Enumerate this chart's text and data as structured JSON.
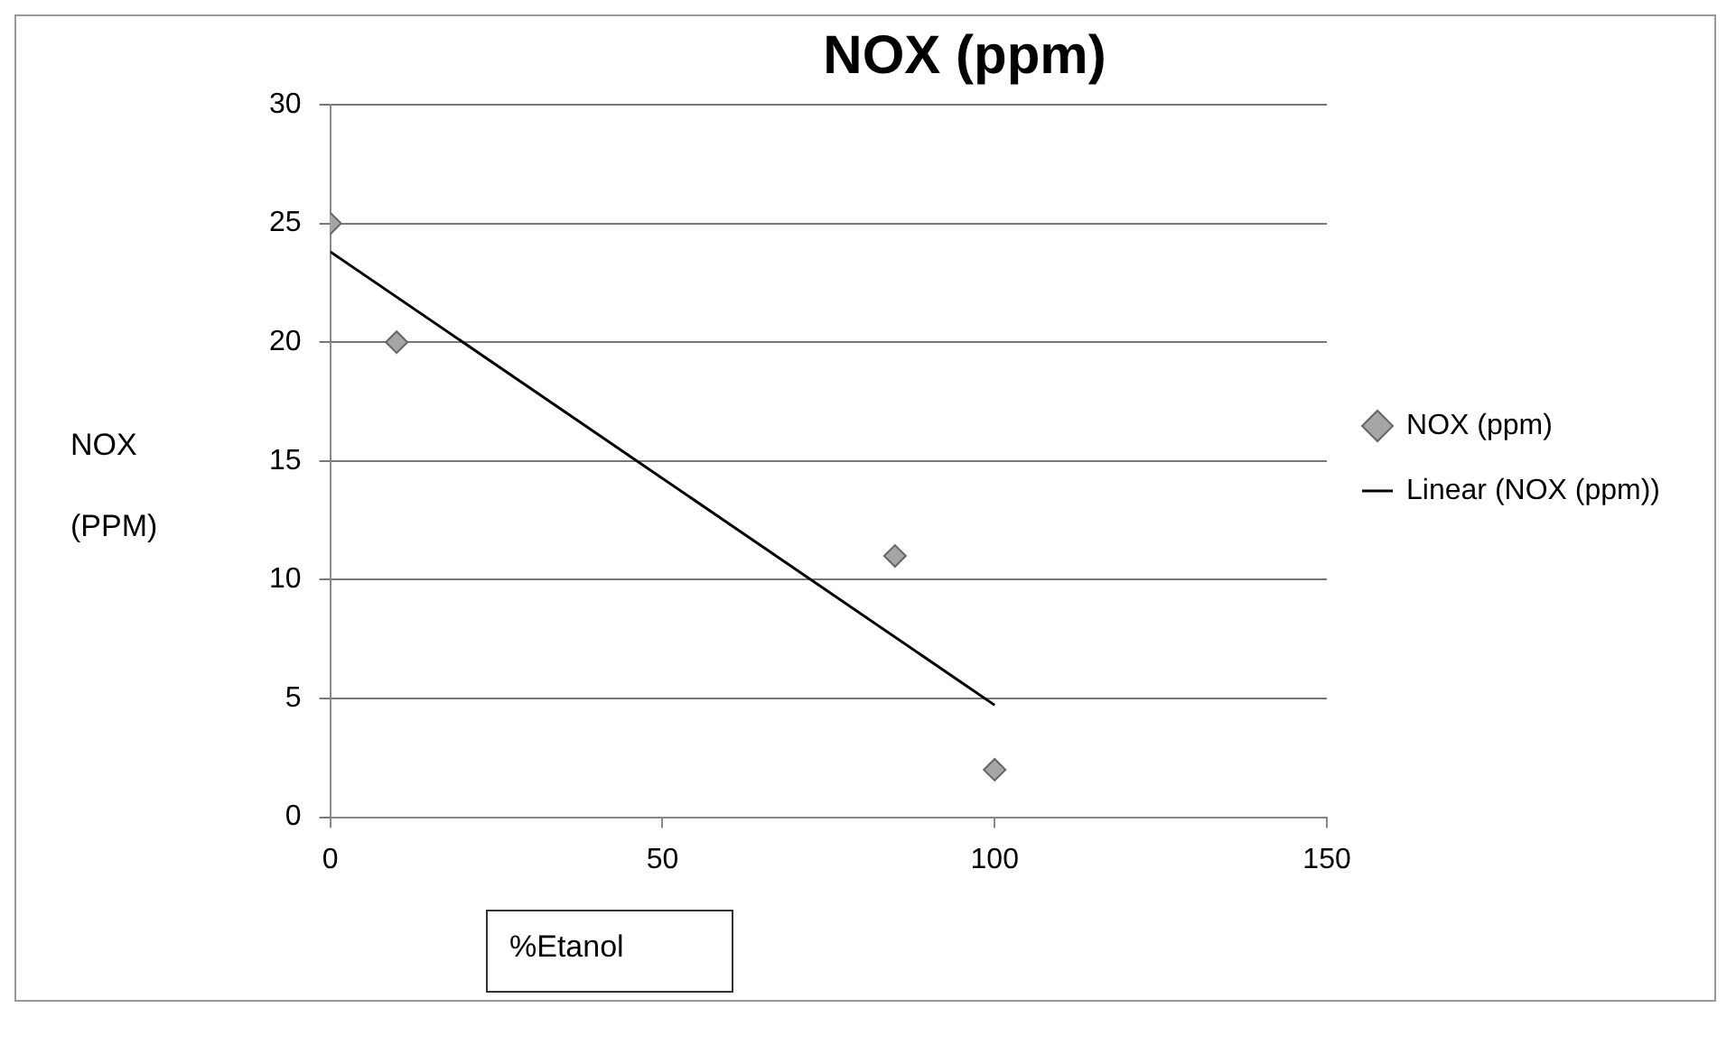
{
  "chart_data": {
    "type": "scatter",
    "title": "NOX (ppm)",
    "xlabel": "%Etanol",
    "ylabel": "NOX (PPM)",
    "xlim": [
      0,
      150
    ],
    "xticks": [
      0,
      50,
      100,
      150
    ],
    "ylim": [
      0,
      30
    ],
    "yticks": [
      0,
      5,
      10,
      15,
      20,
      25,
      30
    ],
    "grid": "y",
    "legend": "right",
    "marker": "diamond",
    "series": [
      {
        "name": "NOX (ppm)",
        "color": "#a6a6a6",
        "x": [
          0,
          10,
          85,
          100
        ],
        "values": [
          25,
          20,
          11,
          2
        ]
      },
      {
        "name": "Linear (NOX (ppm))",
        "type": "line",
        "color": "#000000",
        "marker": "none",
        "line_style": "solid",
        "x": [
          0,
          100
        ],
        "values": [
          23.81,
          4.72
        ]
      }
    ]
  }
}
